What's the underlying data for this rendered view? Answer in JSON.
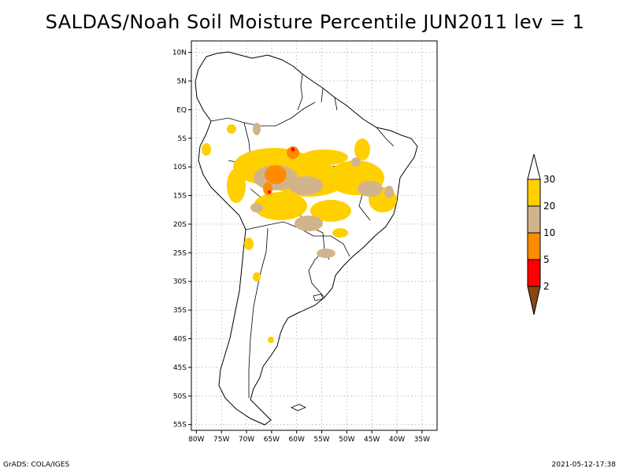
{
  "title": "SALDAS/Noah Soil Moisture Percentile JUN2011 lev = 1",
  "footer": {
    "left": "GrADS: COLA/IGES",
    "right": "2021-05-12-17:38"
  },
  "map": {
    "region": "South America",
    "lat_labels": [
      "10N",
      "5N",
      "EQ",
      "5S",
      "10S",
      "15S",
      "20S",
      "25S",
      "30S",
      "35S",
      "40S",
      "45S",
      "50S",
      "55S"
    ],
    "lat_values": [
      10,
      5,
      0,
      -5,
      -10,
      -15,
      -20,
      -25,
      -30,
      -35,
      -40,
      -45,
      -50,
      -55
    ],
    "lon_labels": [
      "80W",
      "75W",
      "70W",
      "65W",
      "60W",
      "55W",
      "50W",
      "45W",
      "40W",
      "35W"
    ],
    "lon_values": [
      -80,
      -75,
      -70,
      -65,
      -60,
      -55,
      -50,
      -45,
      -40,
      -35
    ],
    "lon_range": [
      -81,
      -32
    ],
    "lat_range": [
      -56,
      12
    ],
    "grid": true
  },
  "colorbar": {
    "labels": [
      "30",
      "20",
      "10",
      "5",
      "2"
    ],
    "bins": [
      {
        "color": "#ffffff"
      },
      {
        "color": "#ffd000"
      },
      {
        "color": "#d2b48c"
      },
      {
        "color": "#ff8c00"
      },
      {
        "color": "#ff0000"
      },
      {
        "color": "#8b4513"
      }
    ]
  }
}
